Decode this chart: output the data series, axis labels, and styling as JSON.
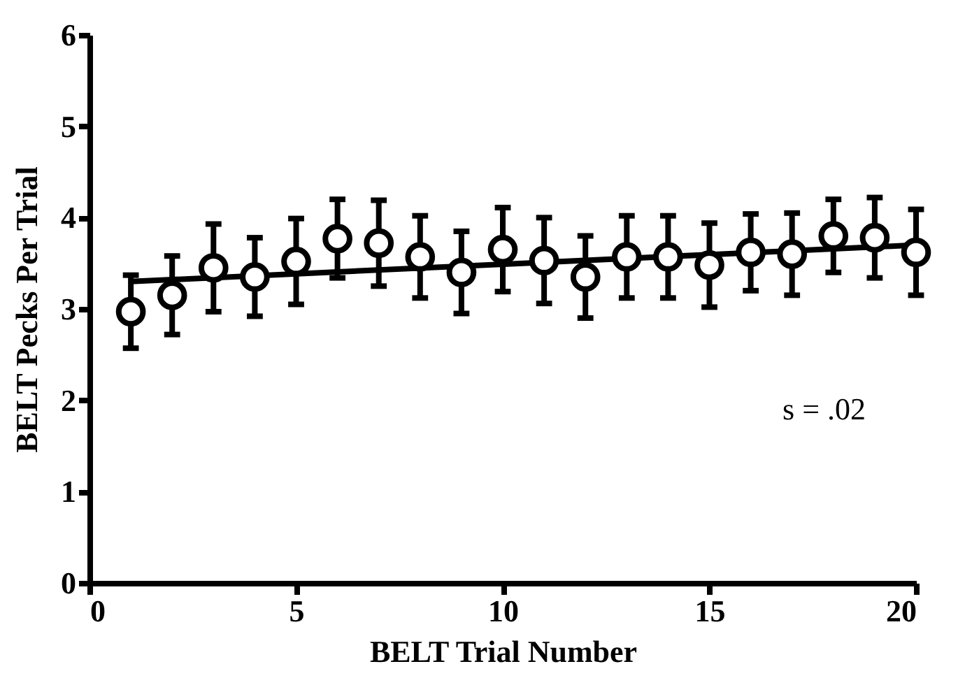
{
  "chart_data": {
    "type": "scatter",
    "xlabel": "BELT Trial Number",
    "ylabel": "BELT Pecks Per Trial",
    "xlim": [
      0,
      20
    ],
    "xticks": [
      0,
      5,
      10,
      15,
      20
    ],
    "ylim": [
      0,
      6
    ],
    "yticks": [
      0,
      1,
      2,
      3,
      4,
      5,
      6
    ],
    "grid": false,
    "annotations": [
      "s = .02"
    ],
    "series": [
      {
        "type": "scatter",
        "marker": "circle",
        "color": "#000000",
        "x": [
          1,
          2,
          3,
          4,
          5,
          6,
          7,
          8,
          9,
          10,
          11,
          12,
          13,
          14,
          15,
          16,
          17,
          18,
          19,
          20
        ],
        "values": [
          2.97,
          3.15,
          3.45,
          3.35,
          3.52,
          3.77,
          3.72,
          3.57,
          3.4,
          3.65,
          3.53,
          3.35,
          3.57,
          3.57,
          3.48,
          3.62,
          3.6,
          3.8,
          3.78,
          3.62
        ],
        "errors": [
          0.4,
          0.43,
          0.48,
          0.43,
          0.47,
          0.43,
          0.47,
          0.45,
          0.45,
          0.46,
          0.47,
          0.45,
          0.45,
          0.45,
          0.46,
          0.42,
          0.45,
          0.4,
          0.44,
          0.47
        ]
      },
      {
        "type": "line",
        "color": "#000000",
        "x": [
          1,
          20
        ],
        "values": [
          3.3,
          3.7
        ],
        "line_style": "solid"
      }
    ]
  }
}
